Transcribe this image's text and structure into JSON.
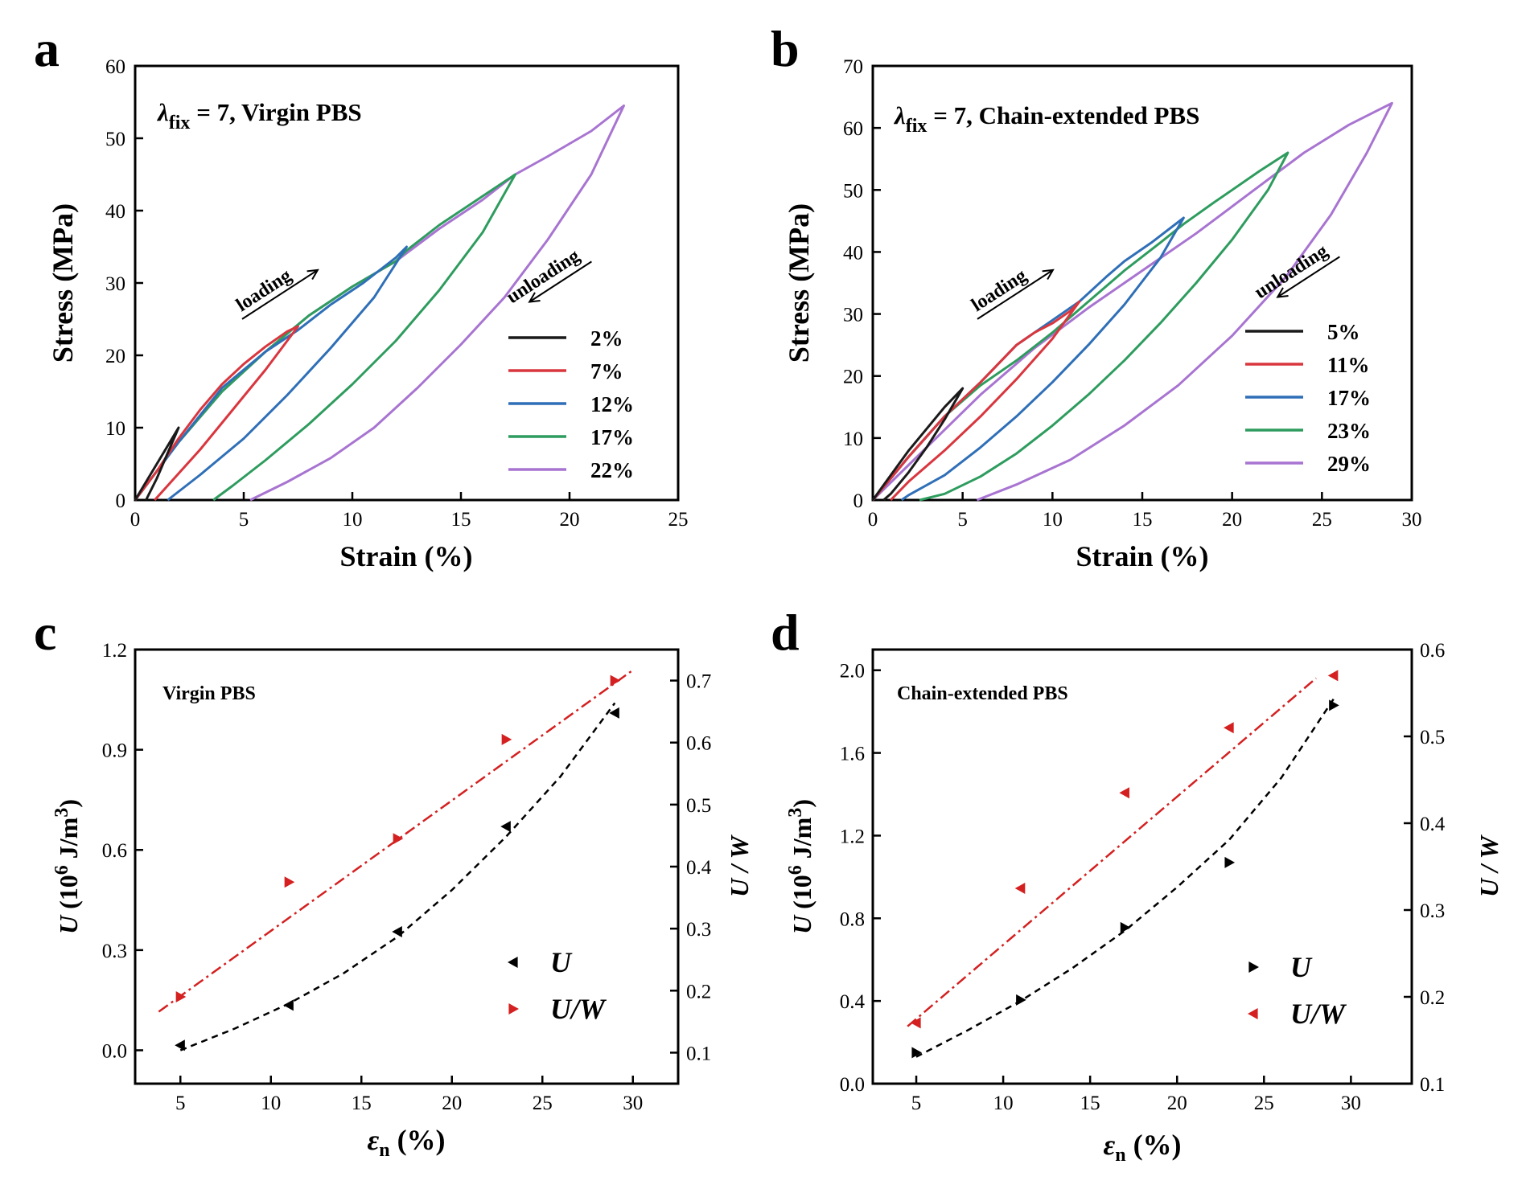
{
  "panels": {
    "a": {
      "letter": "a",
      "inset_lambda": "λ",
      "inset_sub": "fix",
      "inset_rest": " = 7, Virgin PBS",
      "annot_loading": "loading",
      "annot_unloading": "unloading"
    },
    "b": {
      "letter": "b",
      "inset_lambda": "λ",
      "inset_sub": "fix",
      "inset_rest": " = 7, Chain-extended PBS",
      "annot_loading": "loading",
      "annot_unloading": "unloading"
    },
    "c": {
      "letter": "c",
      "inset": "Virgin PBS"
    },
    "d": {
      "letter": "d",
      "inset": "Chain-extended PBS"
    }
  },
  "colors": {
    "2%": "#1a1a1a",
    "7%": "#d9363e",
    "12%": "#2f6fb7",
    "17%": "#2e9c5e",
    "22%": "#a874d1",
    "5%": "#1a1a1a",
    "11%": "#d9363e",
    "17%b": "#2f6fb7",
    "23%": "#2e9c5e",
    "29%": "#a874d1",
    "U_marker": "#000000",
    "UW_marker": "#d42020",
    "U_fit": "#000000",
    "UW_fit": "#d42020"
  },
  "chart_data": [
    {
      "id": "a",
      "type": "line",
      "xlabel": "Strain (%)",
      "ylabel": "Stress (MPa)",
      "xlim": [
        0,
        25
      ],
      "ylim": [
        0,
        60
      ],
      "xticks": [
        0,
        5,
        10,
        15,
        20,
        25
      ],
      "yticks": [
        0,
        10,
        20,
        30,
        40,
        50,
        60
      ],
      "series": [
        {
          "name": "2%",
          "color_key": "2%",
          "loading": [
            [
              0,
              0
            ],
            [
              0.5,
              2.5
            ],
            [
              1,
              5
            ],
            [
              1.5,
              7.5
            ],
            [
              2,
              10
            ]
          ],
          "unloading": [
            [
              2,
              10
            ],
            [
              1.5,
              6.5
            ],
            [
              1,
              3
            ],
            [
              0.5,
              0
            ]
          ]
        },
        {
          "name": "7%",
          "color_key": "7%",
          "loading": [
            [
              0,
              0
            ],
            [
              1,
              4
            ],
            [
              2,
              8.5
            ],
            [
              3,
              12.5
            ],
            [
              4,
              16
            ],
            [
              5,
              18.8
            ],
            [
              6,
              21.2
            ],
            [
              7,
              23.3
            ],
            [
              7.5,
              24
            ]
          ],
          "unloading": [
            [
              7.5,
              24
            ],
            [
              6,
              18
            ],
            [
              4.5,
              12.5
            ],
            [
              3,
              7
            ],
            [
              1.5,
              2
            ],
            [
              0.9,
              0
            ]
          ]
        },
        {
          "name": "12%",
          "color_key": "12%",
          "loading": [
            [
              0,
              0
            ],
            [
              2,
              8
            ],
            [
              4,
              15.5
            ],
            [
              6,
              20.5
            ],
            [
              7.5,
              23.5
            ],
            [
              9,
              27
            ],
            [
              10.5,
              30
            ],
            [
              12,
              33.5
            ],
            [
              12.5,
              35
            ]
          ],
          "unloading": [
            [
              12.5,
              35
            ],
            [
              11,
              28
            ],
            [
              9,
              21
            ],
            [
              7,
              14.5
            ],
            [
              5,
              8.5
            ],
            [
              3,
              3.5
            ],
            [
              1.5,
              0
            ]
          ]
        },
        {
          "name": "17%",
          "color_key": "17%",
          "loading": [
            [
              0,
              0
            ],
            [
              2,
              8
            ],
            [
              4,
              15
            ],
            [
              6,
              20.5
            ],
            [
              8,
              25.5
            ],
            [
              10,
              29.5
            ],
            [
              12,
              33
            ],
            [
              12.5,
              34.5
            ],
            [
              14,
              38
            ],
            [
              16,
              42
            ],
            [
              17.5,
              45
            ]
          ],
          "unloading": [
            [
              17.5,
              45
            ],
            [
              16,
              37
            ],
            [
              14,
              29
            ],
            [
              12,
              22
            ],
            [
              10,
              16
            ],
            [
              8,
              10.5
            ],
            [
              6,
              5.5
            ],
            [
              4.5,
              2
            ],
            [
              3.6,
              0
            ]
          ]
        },
        {
          "name": "22%",
          "color_key": "22%",
          "loading": [
            [
              0,
              0
            ],
            [
              2,
              8
            ],
            [
              4,
              15
            ],
            [
              6,
              20.5
            ],
            [
              8,
              25.5
            ],
            [
              10,
              29.5
            ],
            [
              12,
              33
            ],
            [
              14,
              37.5
            ],
            [
              16,
              41.5
            ],
            [
              17.5,
              45
            ],
            [
              19,
              47.5
            ],
            [
              21,
              51
            ],
            [
              22.5,
              54.5
            ]
          ],
          "unloading": [
            [
              22.5,
              54.5
            ],
            [
              21,
              45
            ],
            [
              19,
              36
            ],
            [
              17,
              28
            ],
            [
              15,
              21.5
            ],
            [
              13,
              15.5
            ],
            [
              11,
              10
            ],
            [
              9,
              5.8
            ],
            [
              7,
              2.5
            ],
            [
              5.3,
              0
            ]
          ]
        }
      ]
    },
    {
      "id": "b",
      "type": "line",
      "xlabel": "Strain (%)",
      "ylabel": "Stress (MPa)",
      "xlim": [
        0,
        30
      ],
      "ylim": [
        0,
        70
      ],
      "xticks": [
        0,
        5,
        10,
        15,
        20,
        25,
        30
      ],
      "yticks": [
        0,
        10,
        20,
        30,
        40,
        50,
        60,
        70
      ],
      "series": [
        {
          "name": "5%",
          "color_key": "5%",
          "loading": [
            [
              0,
              0
            ],
            [
              1,
              4
            ],
            [
              2,
              8
            ],
            [
              3,
              11.5
            ],
            [
              4,
              15
            ],
            [
              5,
              18
            ]
          ],
          "unloading": [
            [
              5,
              18
            ],
            [
              4,
              13
            ],
            [
              3,
              8.5
            ],
            [
              2,
              4.5
            ],
            [
              1,
              1
            ],
            [
              0.6,
              0
            ]
          ]
        },
        {
          "name": "11%",
          "color_key": "11%",
          "loading": [
            [
              0,
              0
            ],
            [
              2,
              7
            ],
            [
              4,
              13.5
            ],
            [
              6,
              19
            ],
            [
              7,
              22
            ],
            [
              8,
              25
            ],
            [
              9,
              27
            ],
            [
              10,
              28.5
            ],
            [
              11,
              30.5
            ],
            [
              11.5,
              32
            ]
          ],
          "unloading": [
            [
              11.5,
              32
            ],
            [
              10,
              26
            ],
            [
              8,
              19.5
            ],
            [
              6,
              13.5
            ],
            [
              4,
              8
            ],
            [
              2,
              3
            ],
            [
              1,
              0
            ]
          ]
        },
        {
          "name": "17%",
          "color_key": "17%b",
          "loading": [
            [
              0,
              0
            ],
            [
              2,
              7
            ],
            [
              4,
              13.5
            ],
            [
              6,
              19
            ],
            [
              8,
              25
            ],
            [
              10,
              29
            ],
            [
              11.5,
              32
            ],
            [
              13,
              36
            ],
            [
              14,
              38.5
            ],
            [
              15.5,
              41.5
            ],
            [
              17.3,
              45.5
            ]
          ],
          "unloading": [
            [
              17.3,
              45.5
            ],
            [
              16,
              39
            ],
            [
              14,
              31.5
            ],
            [
              12,
              25
            ],
            [
              10,
              19
            ],
            [
              8,
              13.5
            ],
            [
              6,
              8.5
            ],
            [
              4,
              4
            ],
            [
              2,
              0.8
            ],
            [
              1.6,
              0
            ]
          ]
        },
        {
          "name": "23%",
          "color_key": "23%",
          "loading": [
            [
              0,
              0
            ],
            [
              2,
              7
            ],
            [
              4,
              13.5
            ],
            [
              6,
              18.5
            ],
            [
              8,
              22.5
            ],
            [
              10,
              27
            ],
            [
              12,
              32
            ],
            [
              14,
              37
            ],
            [
              16,
              41.5
            ],
            [
              17.3,
              44.5
            ],
            [
              19,
              48
            ],
            [
              20,
              50
            ],
            [
              21.5,
              53
            ],
            [
              23.1,
              56
            ]
          ],
          "unloading": [
            [
              23.1,
              56
            ],
            [
              22,
              50
            ],
            [
              20,
              42
            ],
            [
              18,
              35
            ],
            [
              16,
              28.5
            ],
            [
              14,
              22.5
            ],
            [
              12,
              17
            ],
            [
              10,
              12
            ],
            [
              8,
              7.5
            ],
            [
              6,
              3.8
            ],
            [
              4,
              1
            ],
            [
              2.6,
              0
            ]
          ]
        },
        {
          "name": "29%",
          "color_key": "29%",
          "loading": [
            [
              0,
              0
            ],
            [
              3,
              8.5
            ],
            [
              6,
              17
            ],
            [
              9,
              24.5
            ],
            [
              12,
              31
            ],
            [
              15,
              37
            ],
            [
              18,
              43
            ],
            [
              21,
              49.5
            ],
            [
              24,
              56
            ],
            [
              26.5,
              60.5
            ],
            [
              28.9,
              64
            ]
          ],
          "unloading": [
            [
              28.9,
              64
            ],
            [
              27.5,
              56
            ],
            [
              25.5,
              46
            ],
            [
              23,
              36
            ],
            [
              20,
              26.5
            ],
            [
              17,
              18.5
            ],
            [
              14,
              12
            ],
            [
              11,
              6.5
            ],
            [
              8,
              2.5
            ],
            [
              5.8,
              0
            ]
          ]
        }
      ]
    },
    {
      "id": "c",
      "type": "scatter",
      "xlabel_main": "ε",
      "xlabel_sub": "n",
      "xlabel_rest": " (%)",
      "ylabel_left_main": "U",
      "ylabel_left_rest": " (10",
      "ylabel_left_exp1": "6",
      "ylabel_left_mid": " J/m",
      "ylabel_left_exp2": "3",
      "ylabel_left_end": ")",
      "ylabel_right": "U / W",
      "xlim": [
        2.5,
        32.5
      ],
      "ylim_left": [
        -0.1,
        1.2
      ],
      "ylim_right": [
        0.05,
        0.75
      ],
      "xticks": [
        5,
        10,
        15,
        20,
        25,
        30
      ],
      "yticks_left": [
        "0.0",
        "0.3",
        "0.6",
        "0.9",
        "1.2"
      ],
      "yticks_right": [
        "0.1",
        "0.2",
        "0.3",
        "0.4",
        "0.5",
        "0.6",
        "0.7"
      ],
      "series": [
        {
          "name": "U",
          "axis": "left",
          "marker": "triangle-left",
          "x": [
            5,
            11,
            17,
            23,
            29
          ],
          "y": [
            0.015,
            0.135,
            0.355,
            0.67,
            1.01
          ],
          "fit_x": [
            5,
            8,
            11,
            14,
            17,
            20,
            23,
            26,
            29
          ],
          "fit_y": [
            0.0,
            0.065,
            0.14,
            0.23,
            0.34,
            0.48,
            0.64,
            0.82,
            1.04
          ]
        },
        {
          "name": "U/W",
          "axis": "right",
          "marker": "triangle-right",
          "x": [
            5,
            11,
            17,
            23,
            29
          ],
          "y": [
            0.19,
            0.375,
            0.445,
            0.605,
            0.7
          ],
          "fit_x": [
            3.8,
            30
          ],
          "fit_y": [
            0.166,
            0.717
          ]
        }
      ]
    },
    {
      "id": "d",
      "type": "scatter",
      "xlabel_main": "ε",
      "xlabel_sub": "n",
      "xlabel_rest": " (%)",
      "ylabel_left_main": "U",
      "ylabel_left_rest": " (10",
      "ylabel_left_exp1": "6",
      "ylabel_left_mid": " J/m",
      "ylabel_left_exp2": "3",
      "ylabel_left_end": ")",
      "ylabel_right": "U / W",
      "xlim": [
        2.5,
        33.5
      ],
      "ylim_left": [
        0.0,
        2.1
      ],
      "ylim_right": [
        0.1,
        0.6
      ],
      "xticks": [
        5,
        10,
        15,
        20,
        25,
        30
      ],
      "yticks_left": [
        "0.0",
        "0.4",
        "0.8",
        "1.2",
        "1.6",
        "2.0"
      ],
      "yticks_right": [
        "0.1",
        "0.2",
        "0.3",
        "0.4",
        "0.5",
        "0.6"
      ],
      "series": [
        {
          "name": "U",
          "axis": "left",
          "marker": "triangle-right",
          "x": [
            5,
            11,
            17,
            23,
            29
          ],
          "y": [
            0.15,
            0.405,
            0.755,
            1.07,
            1.83
          ],
          "fit_x": [
            5,
            8,
            11,
            14,
            17,
            20,
            23,
            26,
            29
          ],
          "fit_y": [
            0.13,
            0.26,
            0.4,
            0.56,
            0.74,
            0.95,
            1.18,
            1.48,
            1.86
          ]
        },
        {
          "name": "U/W",
          "axis": "right",
          "marker": "triangle-left",
          "x": [
            5,
            11,
            17,
            23,
            29
          ],
          "y": [
            0.17,
            0.325,
            0.435,
            0.51,
            0.57
          ],
          "fit_x": [
            4.5,
            28
          ],
          "fit_y": [
            0.166,
            0.567
          ]
        }
      ]
    }
  ]
}
